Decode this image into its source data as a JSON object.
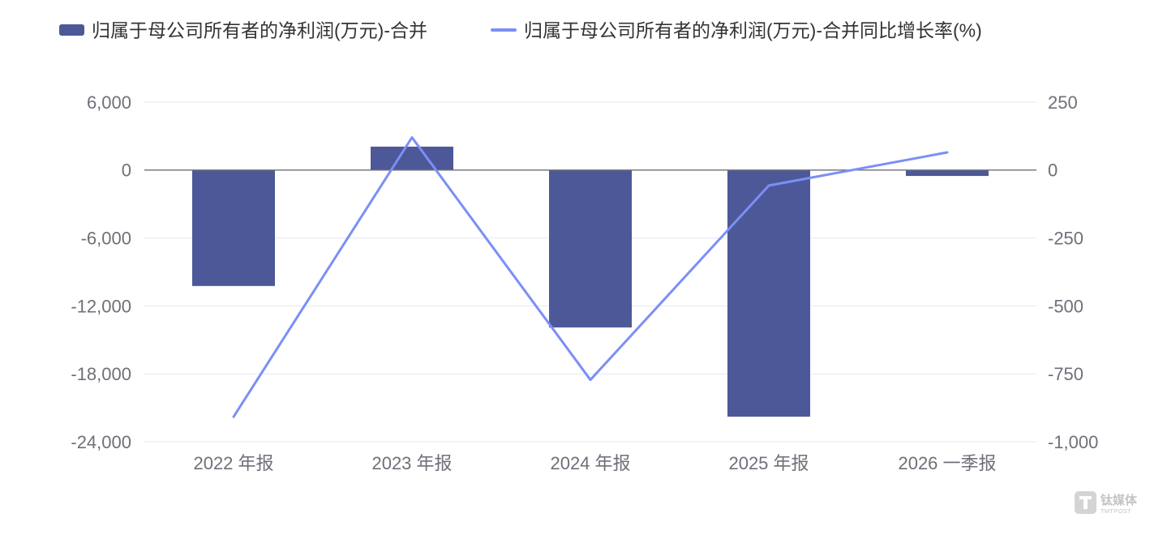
{
  "chart_data": {
    "type": "bar",
    "categories": [
      "2022 年报",
      "2023 年报",
      "2024 年报",
      "2025 年报",
      "2026 一季报"
    ],
    "series": [
      {
        "name": "归属于母公司所有者的净利润(万元)-合并",
        "type": "bar",
        "axis": "left",
        "color": "#4d5898",
        "values": [
          -10240,
          2070,
          -13900,
          -21780,
          -520
        ]
      },
      {
        "name": "归属于母公司所有者的净利润(万元)-合并同比增长率(%)",
        "type": "line",
        "axis": "right",
        "color": "#7b8ff6",
        "values": [
          -908,
          120,
          -772,
          -57,
          65
        ]
      }
    ],
    "y_left": {
      "min": -24000,
      "max": 6000,
      "ticks": [
        6000,
        0,
        -6000,
        -12000,
        -18000,
        -24000
      ],
      "tick_labels": [
        "6,000",
        "0",
        "-6,000",
        "-12,000",
        "-18,000",
        "-24,000"
      ]
    },
    "y_right": {
      "min": -1000,
      "max": 250,
      "ticks": [
        250,
        0,
        -250,
        -500,
        -750,
        -1000
      ],
      "tick_labels": [
        "250",
        "0",
        "-250",
        "-500",
        "-750",
        "-1,000"
      ]
    },
    "grid": true,
    "legend_position": "top-left"
  },
  "colors": {
    "grid": "#e3e8f1",
    "axis_line": "#6e7079",
    "axis_text": "#6e7079",
    "legend_text": "#333333",
    "watermark": "#d4d4d4"
  },
  "watermark": {
    "name": "钛媒体",
    "subname": "TMTPOST"
  }
}
